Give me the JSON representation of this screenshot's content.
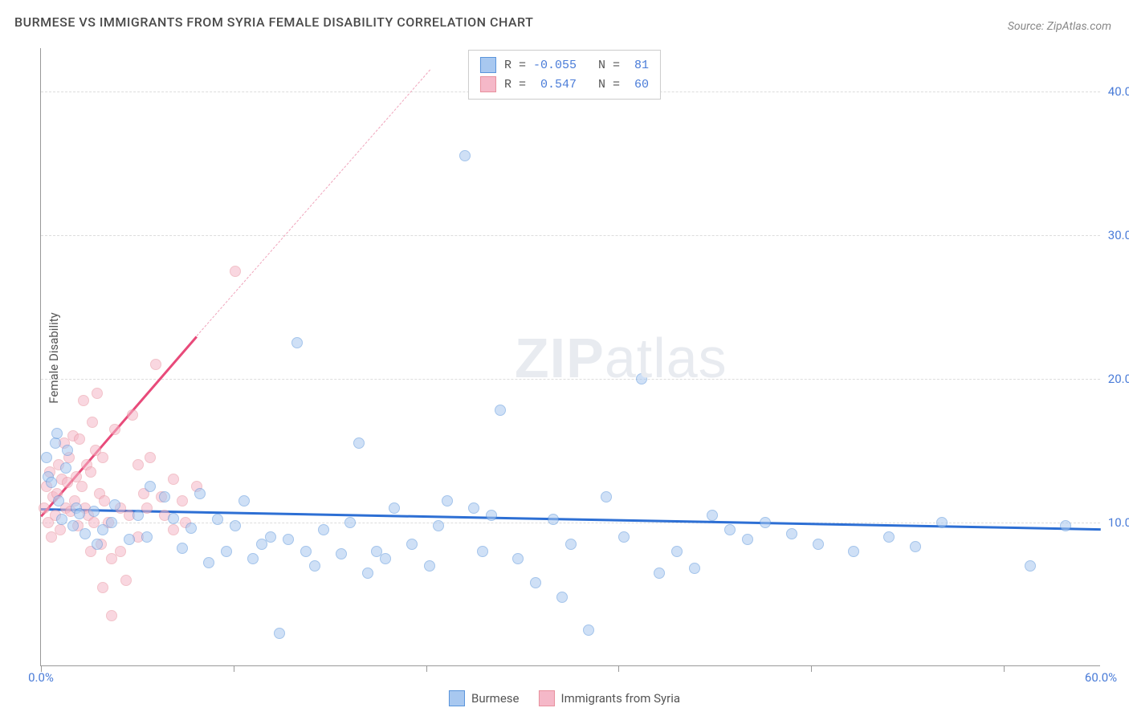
{
  "title": "BURMESE VS IMMIGRANTS FROM SYRIA FEMALE DISABILITY CORRELATION CHART",
  "source": "Source: ZipAtlas.com",
  "ylabel": "Female Disability",
  "watermark": {
    "bold": "ZIP",
    "light": "atlas"
  },
  "chart": {
    "type": "scatter",
    "background_color": "#ffffff",
    "grid_color": "#dddddd",
    "axis_color": "#999999",
    "xlim": [
      0,
      60
    ],
    "ylim": [
      0,
      43
    ],
    "x_ticks": [
      0,
      10.9,
      21.8,
      32.7,
      43.6,
      54.5
    ],
    "x_tick_labels": {
      "0": "0.0%",
      "60": "60.0%"
    },
    "y_ticks": [
      10,
      20,
      30,
      40
    ],
    "y_tick_labels": {
      "10": "10.0%",
      "20": "20.0%",
      "30": "30.0%",
      "40": "40.0%"
    },
    "y_tick_color": "#4a7cd8",
    "x_tick_color": "#4a7cd8",
    "marker_radius": 7,
    "marker_opacity": 0.55
  },
  "series": {
    "burmese": {
      "label": "Burmese",
      "fill": "#a8c8f0",
      "stroke": "#5a95db",
      "R": "-0.055",
      "N": "81",
      "trend": {
        "x1": 0,
        "y1": 11.0,
        "x2": 60,
        "y2": 9.6,
        "color": "#2d6fd4",
        "width": 2.5
      },
      "points": [
        [
          0.3,
          14.5
        ],
        [
          0.4,
          13.2
        ],
        [
          0.6,
          12.8
        ],
        [
          0.8,
          15.5
        ],
        [
          0.9,
          16.2
        ],
        [
          1.0,
          11.5
        ],
        [
          1.2,
          10.2
        ],
        [
          1.4,
          13.8
        ],
        [
          1.5,
          15.0
        ],
        [
          1.8,
          9.8
        ],
        [
          2.0,
          11.0
        ],
        [
          2.2,
          10.6
        ],
        [
          2.5,
          9.2
        ],
        [
          3.0,
          10.8
        ],
        [
          3.2,
          8.5
        ],
        [
          3.5,
          9.5
        ],
        [
          4.0,
          10.0
        ],
        [
          4.2,
          11.2
        ],
        [
          5.0,
          8.8
        ],
        [
          5.5,
          10.5
        ],
        [
          6.0,
          9.0
        ],
        [
          6.2,
          12.5
        ],
        [
          7.0,
          11.8
        ],
        [
          7.5,
          10.3
        ],
        [
          8.0,
          8.2
        ],
        [
          8.5,
          9.6
        ],
        [
          9.0,
          12.0
        ],
        [
          9.5,
          7.2
        ],
        [
          10.0,
          10.2
        ],
        [
          10.5,
          8.0
        ],
        [
          11.0,
          9.8
        ],
        [
          11.5,
          11.5
        ],
        [
          12.0,
          7.5
        ],
        [
          12.5,
          8.5
        ],
        [
          13.0,
          9.0
        ],
        [
          13.5,
          2.3
        ],
        [
          14.0,
          8.8
        ],
        [
          14.5,
          22.5
        ],
        [
          15.0,
          8.0
        ],
        [
          15.5,
          7.0
        ],
        [
          16.0,
          9.5
        ],
        [
          17.0,
          7.8
        ],
        [
          17.5,
          10.0
        ],
        [
          18.0,
          15.5
        ],
        [
          18.5,
          6.5
        ],
        [
          19.0,
          8.0
        ],
        [
          19.5,
          7.5
        ],
        [
          20.0,
          11.0
        ],
        [
          21.0,
          8.5
        ],
        [
          22.0,
          7.0
        ],
        [
          22.5,
          9.8
        ],
        [
          23.0,
          11.5
        ],
        [
          24.0,
          35.5
        ],
        [
          24.5,
          11.0
        ],
        [
          25.0,
          8.0
        ],
        [
          25.5,
          10.5
        ],
        [
          26.0,
          17.8
        ],
        [
          27.0,
          7.5
        ],
        [
          28.0,
          5.8
        ],
        [
          29.0,
          10.2
        ],
        [
          29.5,
          4.8
        ],
        [
          30.0,
          8.5
        ],
        [
          31.0,
          2.5
        ],
        [
          32.0,
          11.8
        ],
        [
          33.0,
          9.0
        ],
        [
          34.0,
          20.0
        ],
        [
          35.0,
          6.5
        ],
        [
          36.0,
          8.0
        ],
        [
          37.0,
          6.8
        ],
        [
          38.0,
          10.5
        ],
        [
          39.0,
          9.5
        ],
        [
          40.0,
          8.8
        ],
        [
          41.0,
          10.0
        ],
        [
          42.5,
          9.2
        ],
        [
          44.0,
          8.5
        ],
        [
          46.0,
          8.0
        ],
        [
          48.0,
          9.0
        ],
        [
          49.5,
          8.3
        ],
        [
          51.0,
          10.0
        ],
        [
          56.0,
          7.0
        ],
        [
          58.0,
          9.8
        ]
      ]
    },
    "syria": {
      "label": "Immigrants from Syria",
      "fill": "#f5b8c8",
      "stroke": "#e8919e",
      "R": "0.547",
      "N": "60",
      "trend_solid": {
        "x1": 0,
        "y1": 10.5,
        "x2": 8.8,
        "y2": 23.0,
        "color": "#e84a7a",
        "width": 2.5
      },
      "trend_dashed": {
        "x1": 8.8,
        "y1": 23.0,
        "x2": 22.0,
        "y2": 41.5,
        "color": "#f0a5bc",
        "width": 1.5
      },
      "points": [
        [
          0.2,
          11.0
        ],
        [
          0.3,
          12.5
        ],
        [
          0.4,
          10.0
        ],
        [
          0.5,
          13.5
        ],
        [
          0.6,
          9.0
        ],
        [
          0.7,
          11.8
        ],
        [
          0.8,
          10.5
        ],
        [
          0.9,
          12.0
        ],
        [
          1.0,
          14.0
        ],
        [
          1.1,
          9.5
        ],
        [
          1.2,
          13.0
        ],
        [
          1.3,
          15.5
        ],
        [
          1.4,
          11.0
        ],
        [
          1.5,
          12.8
        ],
        [
          1.6,
          14.5
        ],
        [
          1.7,
          10.8
        ],
        [
          1.8,
          16.0
        ],
        [
          1.9,
          11.5
        ],
        [
          2.0,
          13.2
        ],
        [
          2.1,
          9.8
        ],
        [
          2.2,
          15.8
        ],
        [
          2.3,
          12.5
        ],
        [
          2.4,
          18.5
        ],
        [
          2.5,
          11.0
        ],
        [
          2.6,
          14.0
        ],
        [
          2.7,
          10.5
        ],
        [
          2.8,
          13.5
        ],
        [
          2.9,
          17.0
        ],
        [
          3.0,
          10.0
        ],
        [
          3.1,
          15.0
        ],
        [
          3.2,
          19.0
        ],
        [
          3.3,
          12.0
        ],
        [
          3.4,
          8.5
        ],
        [
          3.5,
          14.5
        ],
        [
          3.6,
          11.5
        ],
        [
          3.8,
          10.0
        ],
        [
          4.0,
          7.5
        ],
        [
          4.2,
          16.5
        ],
        [
          4.5,
          11.0
        ],
        [
          4.8,
          6.0
        ],
        [
          5.0,
          10.5
        ],
        [
          5.2,
          17.5
        ],
        [
          5.5,
          9.0
        ],
        [
          5.8,
          12.0
        ],
        [
          6.0,
          11.0
        ],
        [
          6.5,
          21.0
        ],
        [
          7.0,
          10.5
        ],
        [
          7.5,
          9.5
        ],
        [
          8.0,
          11.5
        ],
        [
          4.0,
          3.5
        ],
        [
          3.5,
          5.5
        ],
        [
          2.8,
          8.0
        ],
        [
          5.5,
          14.0
        ],
        [
          6.8,
          11.8
        ],
        [
          7.5,
          13.0
        ],
        [
          8.2,
          10.0
        ],
        [
          8.8,
          12.5
        ],
        [
          11.0,
          27.5
        ],
        [
          6.2,
          14.5
        ],
        [
          4.5,
          8.0
        ]
      ]
    }
  },
  "legend_top": {
    "r_label": "R = ",
    "n_label": "N = ",
    "label_color": "#555555",
    "value_color": "#4a7cd8"
  }
}
